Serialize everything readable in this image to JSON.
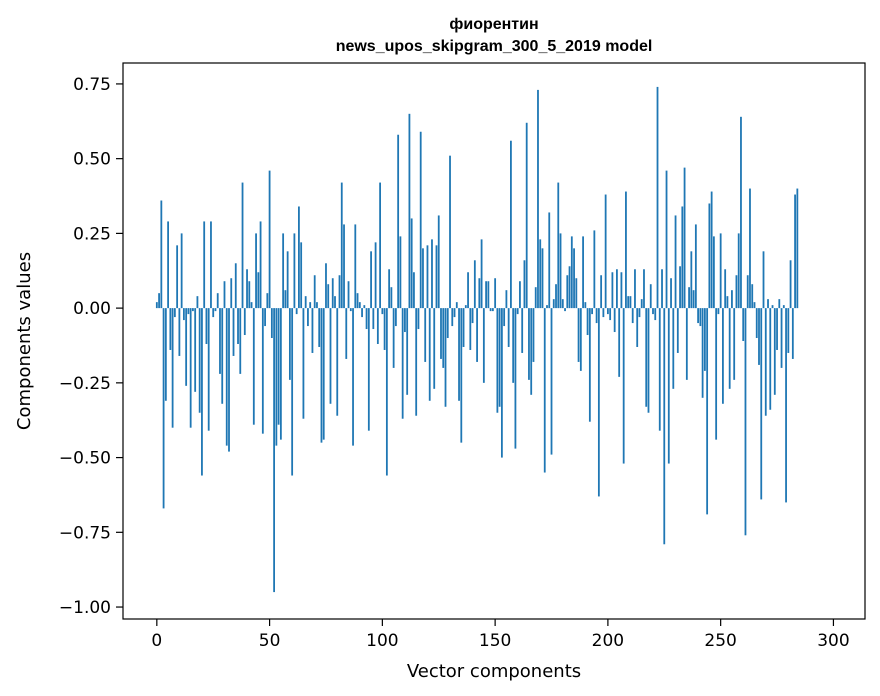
{
  "chart_data": {
    "type": "bar",
    "title": "фиорентин",
    "subtitle": "news_upos_skipgram_300_5_2019 model",
    "xlabel": "Vector components",
    "ylabel": "Components values",
    "xlim": [
      -15,
      314
    ],
    "ylim": [
      -1.04,
      0.82
    ],
    "x_ticks": [
      0,
      50,
      100,
      150,
      200,
      250,
      300
    ],
    "x_tick_labels": [
      "0",
      "50",
      "100",
      "150",
      "200",
      "250",
      "300"
    ],
    "y_ticks": [
      0.75,
      0.5,
      0.25,
      0.0,
      -0.25,
      -0.5,
      -0.75,
      -1.0
    ],
    "y_tick_labels": [
      "0.75",
      "0.50",
      "0.25",
      "0.00",
      "−0.25",
      "−0.50",
      "−0.75",
      "−1.00"
    ],
    "bar_color": "#1f77b4",
    "grid": false,
    "series": [
      {
        "name": "фиорентин",
        "values": [
          0.02,
          0.05,
          0.36,
          -0.67,
          -0.31,
          0.29,
          -0.14,
          -0.4,
          -0.03,
          0.21,
          -0.16,
          0.25,
          -0.04,
          -0.26,
          -0.02,
          -0.4,
          -0.01,
          -0.28,
          0.04,
          -0.35,
          -0.56,
          0.29,
          -0.12,
          -0.41,
          0.29,
          -0.03,
          -0.01,
          0.05,
          -0.22,
          -0.32,
          0.09,
          -0.46,
          -0.48,
          0.1,
          -0.16,
          0.15,
          -0.12,
          -0.22,
          0.42,
          -0.09,
          0.13,
          0.09,
          0.02,
          -0.39,
          0.25,
          0.12,
          0.29,
          -0.42,
          -0.06,
          0.05,
          0.46,
          -0.1,
          -0.95,
          -0.46,
          -0.39,
          -0.44,
          0.25,
          0.06,
          0.19,
          -0.24,
          -0.56,
          0.25,
          -0.02,
          0.34,
          0.22,
          -0.37,
          0.04,
          -0.06,
          0.02,
          -0.15,
          0.11,
          0.02,
          -0.13,
          -0.45,
          -0.44,
          0.15,
          0.08,
          -0.32,
          0.1,
          0.04,
          -0.36,
          0.11,
          0.42,
          0.28,
          -0.17,
          0.09,
          -0.01,
          -0.46,
          0.28,
          0.05,
          0.02,
          -0.03,
          0.01,
          -0.07,
          -0.41,
          0.19,
          -0.07,
          0.22,
          -0.12,
          0.42,
          -0.02,
          -0.14,
          -0.56,
          0.13,
          0.07,
          -0.2,
          -0.06,
          0.58,
          0.24,
          -0.37,
          -0.08,
          -0.29,
          0.65,
          0.3,
          0.12,
          -0.36,
          -0.07,
          0.59,
          0.2,
          -0.18,
          0.21,
          -0.31,
          0.23,
          -0.27,
          0.21,
          0.31,
          -0.17,
          -0.2,
          -0.33,
          -0.1,
          0.51,
          -0.06,
          -0.03,
          0.02,
          -0.31,
          -0.45,
          -0.13,
          0.01,
          0.12,
          -0.14,
          -0.05,
          0.16,
          -0.18,
          0.1,
          0.23,
          -0.25,
          0.09,
          0.09,
          -0.01,
          -0.01,
          0.1,
          -0.35,
          -0.33,
          -0.5,
          -0.06,
          0.06,
          -0.13,
          0.56,
          -0.25,
          -0.47,
          -0.02,
          0.09,
          -0.15,
          0.16,
          0.62,
          -0.24,
          -0.29,
          -0.18,
          0.07,
          0.73,
          0.23,
          0.2,
          -0.55,
          0.01,
          0.32,
          -0.49,
          0.03,
          0.08,
          0.42,
          0.25,
          0.03,
          -0.01,
          0.11,
          0.14,
          0.24,
          0.2,
          0.1,
          -0.18,
          -0.21,
          0.24,
          0.02,
          -0.09,
          -0.38,
          -0.02,
          0.26,
          -0.05,
          -0.63,
          0.11,
          -0.03,
          0.38,
          -0.02,
          -0.04,
          0.12,
          -0.08,
          0.13,
          -0.23,
          0.12,
          -0.52,
          0.39,
          0.04,
          0.04,
          -0.05,
          0.13,
          -0.13,
          -0.03,
          0.03,
          0.13,
          -0.33,
          -0.35,
          0.08,
          -0.02,
          -0.04,
          0.74,
          -0.41,
          0.13,
          -0.79,
          0.46,
          -0.52,
          0.1,
          -0.27,
          0.31,
          -0.15,
          0.14,
          0.34,
          0.47,
          -0.24,
          0.07,
          0.19,
          0.06,
          0.28,
          -0.05,
          -0.06,
          -0.3,
          -0.21,
          -0.69,
          0.35,
          0.39,
          0.24,
          -0.44,
          -0.02,
          0.25,
          -0.32,
          0.13,
          0.04,
          -0.27,
          0.06,
          -0.24,
          0.11,
          0.25,
          0.64,
          -0.11,
          -0.76,
          0.11,
          0.4,
          0.08,
          0.02,
          -0.1,
          -0.19,
          -0.64,
          0.19,
          -0.36,
          0.03,
          -0.34,
          0.01,
          -0.29,
          -0.14,
          0.03,
          -0.2,
          0.01,
          -0.65,
          -0.15,
          0.16,
          -0.17,
          0.38,
          0.4
        ]
      }
    ]
  }
}
